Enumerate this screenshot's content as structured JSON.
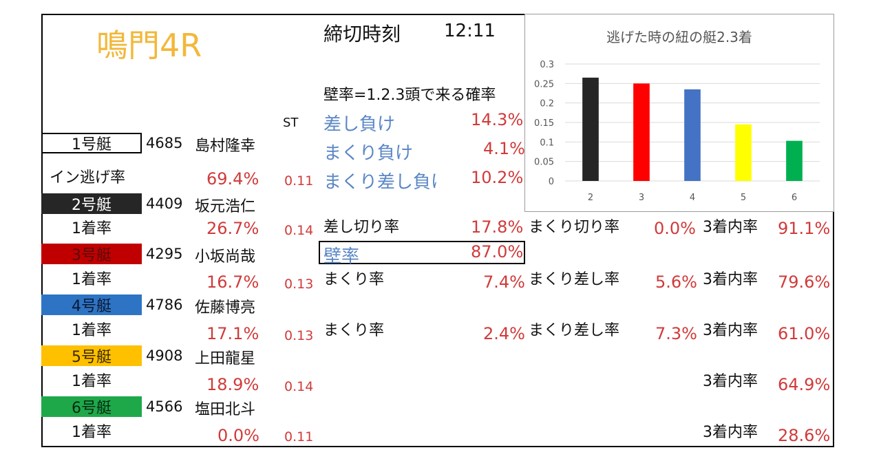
{
  "header": {
    "venue": "鳴門4R",
    "deadline_label": "締切時刻",
    "deadline_time": "12:11"
  },
  "colors": {
    "title": "#f2b83a",
    "value_red": "#d13a3a",
    "value_blue": "#5b87c5",
    "boat1": "#ffffff",
    "boat2": "#262626",
    "boat3": "#c00000",
    "boat4": "#2e74c4",
    "boat5": "#ffc000",
    "boat6": "#1fa84a"
  },
  "st_header": "ST",
  "boats": [
    {
      "label": "1号艇",
      "id": "4685",
      "name": "島村隆幸",
      "rate_label": "イン逃げ率",
      "rate": "69.4%",
      "st": "0.11"
    },
    {
      "label": "2号艇",
      "id": "4409",
      "name": "坂元浩仁",
      "rate_label": "1着率",
      "rate": "26.7%",
      "st": "0.14"
    },
    {
      "label": "3号艇",
      "id": "4295",
      "name": "小坂尚哉",
      "rate_label": "1着率",
      "rate": "16.7%",
      "st": "0.13"
    },
    {
      "label": "4号艇",
      "id": "4786",
      "name": "佐藤博亮",
      "rate_label": "1着率",
      "rate": "17.1%",
      "st": "0.13"
    },
    {
      "label": "5号艇",
      "id": "4908",
      "name": "上田龍星",
      "rate_label": "1着率",
      "rate": "18.9%",
      "st": "0.14"
    },
    {
      "label": "6号艇",
      "id": "4566",
      "name": "塩田北斗",
      "rate_label": "1着率",
      "rate": "0.0%",
      "st": "0.11"
    }
  ],
  "wall": {
    "definition": "壁率=1.2.3頭で来る確率",
    "sashi_make_label": "差し負け",
    "sashi_make": "14.3%",
    "makuri_make_label": "まくり負け",
    "makuri_make": "4.1%",
    "makurisashi_make_label": "まくり差し負け",
    "makurisashi_make": "10.2%"
  },
  "row2": {
    "a_label": "差し切り率",
    "a_value": "17.8%",
    "b_label": "まくり切り率",
    "b_value": "0.0%",
    "c_label": "3着内率",
    "c_value": "91.1%"
  },
  "row3": {
    "wall_label": "壁率",
    "wall_value": "87.0%",
    "a_label": "まくり率",
    "a_value": "7.4%",
    "b_label": "まくり差し率",
    "b_value": "5.6%",
    "c_label": "3着内率",
    "c_value": "79.6%"
  },
  "row4": {
    "a_label": "まくり率",
    "a_value": "2.4%",
    "b_label": "まくり差し率",
    "b_value": "7.3%",
    "c_label": "3着内率",
    "c_value": "61.0%"
  },
  "row5": {
    "c_label": "3着内率",
    "c_value": "64.9%"
  },
  "row6": {
    "c_label": "3着内率",
    "c_value": "28.6%"
  },
  "chart_data": {
    "type": "bar",
    "title": "逃げた時の紐の艇2.3着",
    "categories": [
      "2",
      "3",
      "4",
      "5",
      "6"
    ],
    "values": [
      0.265,
      0.25,
      0.235,
      0.145,
      0.103
    ],
    "bar_colors": [
      "#262626",
      "#ff0000",
      "#4472c4",
      "#ffff00",
      "#00b050"
    ],
    "ylim": [
      0,
      0.3
    ],
    "yticks": [
      "0",
      "0.05",
      "0.1",
      "0.15",
      "0.2",
      "0.25",
      "0.3"
    ],
    "grid": true,
    "xlabel": "",
    "ylabel": ""
  }
}
